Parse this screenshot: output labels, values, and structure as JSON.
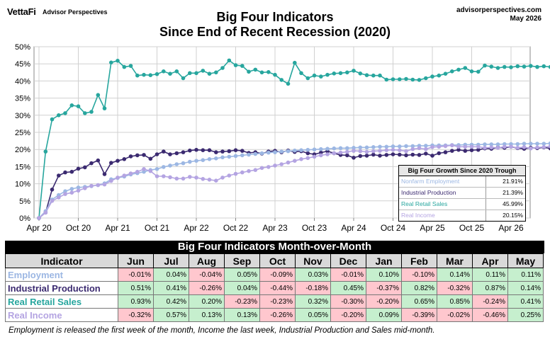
{
  "header": {
    "logo": "VettaFi",
    "logo_sub": "Advisor Perspectives",
    "title_line1": "Big Four Indicators",
    "title_line2": "Since  End of Recent Recession (2020)",
    "site": "advisorperspectives.com",
    "date": "May 2026"
  },
  "colors": {
    "employment": "#9cb7e3",
    "industrial": "#3b2a70",
    "sales": "#27a69e",
    "income": "#b4a4e2",
    "positive_cell": "#c6efce",
    "negative_cell": "#ffc7ce"
  },
  "chart_data": {
    "type": "line",
    "x_tick_labels": [
      "Apr 20",
      "Oct 20",
      "Apr 21",
      "Oct 21",
      "Apr 22",
      "Oct 22",
      "Apr 23",
      "Oct 23",
      "Apr 24",
      "Oct 24",
      "Apr 25",
      "Oct 25",
      "Apr 26"
    ],
    "y_tick_labels": [
      "0%",
      "5%",
      "10%",
      "15%",
      "20%",
      "25%",
      "30%",
      "35%",
      "40%",
      "45%",
      "50%"
    ],
    "ylim": [
      0,
      50
    ],
    "y_unit": "%",
    "x_start": "2020-04",
    "x_end": "2026-04",
    "grid": true,
    "series": [
      {
        "name": "Real Retail Sales",
        "color_key": "sales",
        "values": [
          0,
          19.4,
          28.8,
          30.0,
          30.6,
          32.9,
          32.6,
          30.6,
          31.0,
          35.9,
          32.0,
          45.4,
          45.9,
          44.1,
          44.4,
          41.6,
          41.8,
          41.7,
          42.0,
          42.8,
          42.1,
          42.8,
          40.8,
          42.3,
          42.3,
          43.0,
          42.1,
          42.5,
          43.8,
          46.0,
          44.6,
          44.4,
          42.7,
          43.3,
          42.5,
          42.6,
          41.8,
          40.3,
          39.2,
          45.3,
          42.3,
          40.8,
          41.6,
          41.3,
          41.8,
          42.2,
          42.3,
          42.5,
          43.0,
          42.2,
          41.7,
          41.6,
          41.6,
          40.4,
          40.5,
          40.5,
          40.6,
          40.4,
          40.3,
          40.8,
          41.3,
          41.6,
          42.1,
          42.8,
          43.3,
          43.8,
          42.8,
          42.7,
          44.5,
          44.2,
          43.8,
          44.1,
          44.0,
          44.3,
          44.2,
          44.4,
          44.1,
          44.3,
          44.1,
          43.8,
          44.1,
          44.5,
          45.9,
          45.5,
          45.9
        ]
      },
      {
        "name": "Industrial Production",
        "color_key": "industrial",
        "values": [
          0,
          1.6,
          8.3,
          12.4,
          13.3,
          13.5,
          14.4,
          14.8,
          16.0,
          16.8,
          12.8,
          16.1,
          16.7,
          17.2,
          18.0,
          18.3,
          18.4,
          17.3,
          18.6,
          19.4,
          18.6,
          18.9,
          19.2,
          19.7,
          19.9,
          19.8,
          19.8,
          19.2,
          19.4,
          19.5,
          19.8,
          19.6,
          19.0,
          19.2,
          18.8,
          19.4,
          19.6,
          19.2,
          19.7,
          19.3,
          19.5,
          18.9,
          18.6,
          19.1,
          19.5,
          18.9,
          18.4,
          18.3,
          17.6,
          18.1,
          18.2,
          18.5,
          18.2,
          18.4,
          18.6,
          18.5,
          18.3,
          18.5,
          18.4,
          18.8,
          18.2,
          18.9,
          19.2,
          19.6,
          19.9,
          19.6,
          19.8,
          19.9,
          20.3,
          20.2,
          20.6,
          20.5,
          20.8,
          20.4,
          20.2,
          20.5,
          20.4,
          20.6,
          20.3,
          20.7,
          20.6,
          20.5,
          21.2,
          20.5,
          21.4
        ]
      },
      {
        "name": "Nonfarm Employment",
        "color_key": "employment",
        "values": [
          0,
          2.0,
          5.4,
          6.7,
          7.8,
          8.5,
          8.9,
          9.1,
          9.3,
          9.6,
          10.1,
          11.3,
          11.7,
          12.1,
          12.7,
          13.1,
          13.5,
          14.0,
          14.3,
          14.9,
          15.3,
          15.7,
          16.0,
          16.4,
          16.7,
          16.9,
          17.2,
          17.4,
          17.7,
          17.9,
          18.1,
          18.3,
          18.5,
          18.7,
          18.9,
          19.1,
          19.2,
          19.4,
          19.5,
          19.7,
          19.8,
          19.9,
          20.0,
          20.1,
          20.2,
          20.3,
          20.4,
          20.4,
          20.5,
          20.6,
          20.6,
          20.7,
          20.8,
          20.8,
          20.9,
          20.9,
          21.0,
          21.0,
          21.1,
          21.1,
          21.2,
          21.2,
          21.2,
          21.3,
          21.3,
          21.4,
          21.4,
          21.4,
          21.5,
          21.5,
          21.5,
          21.6,
          21.6,
          21.6,
          21.7,
          21.7,
          21.7,
          21.7,
          21.8,
          21.8,
          21.8,
          21.8,
          21.9,
          21.9,
          21.9
        ]
      },
      {
        "name": "Real Income",
        "color_key": "income",
        "values": [
          0,
          1.6,
          5.0,
          6.0,
          7.0,
          7.4,
          8.0,
          8.7,
          9.4,
          9.6,
          9.8,
          10.8,
          11.8,
          12.4,
          13.0,
          13.5,
          14.3,
          13.7,
          12.2,
          12.2,
          11.9,
          11.5,
          11.5,
          12.0,
          11.8,
          11.4,
          11.2,
          10.9,
          11.8,
          12.4,
          12.9,
          13.3,
          13.7,
          14.0,
          14.6,
          14.9,
          15.3,
          15.7,
          16.2,
          16.7,
          17.2,
          17.5,
          17.9,
          18.3,
          18.6,
          18.9,
          19.1,
          19.3,
          19.6,
          19.5,
          19.3,
          19.5,
          19.6,
          19.8,
          19.9,
          19.8,
          19.5,
          20.1,
          20.4,
          20.1,
          20.7,
          20.8,
          21.0,
          21.2,
          20.8,
          20.8,
          20.8,
          20.8,
          20.5,
          20.6,
          20.5,
          20.8,
          20.8,
          20.5,
          20.7,
          20.3,
          20.6,
          20.7,
          20.9,
          20.0,
          20.2,
          20.1,
          20.1,
          19.9,
          20.2
        ]
      }
    ]
  },
  "growth_box": {
    "title": "Big Four Growth Since 2020 Trough",
    "rows": [
      {
        "label": "Nonfarm Employment",
        "value": "21.91%",
        "color_key": "employment"
      },
      {
        "label": "Industrial Production",
        "value": "21.39%",
        "color_key": "industrial"
      },
      {
        "label": "Real Retail Sales",
        "value": "45.99%",
        "color_key": "sales"
      },
      {
        "label": "Real Income",
        "value": "20.15%",
        "color_key": "income"
      }
    ]
  },
  "mom": {
    "title": "Big Four Indicators Month-over-Month",
    "header_label": "Indicator",
    "months": [
      "Jun",
      "Jul",
      "Aug",
      "Sep",
      "Oct",
      "Nov",
      "Dec",
      "Jan",
      "Feb",
      "Mar",
      "Apr",
      "May"
    ],
    "rows": [
      {
        "label": "Employment",
        "color_key": "employment",
        "values": [
          "-0.01%",
          "0.04%",
          "-0.04%",
          "0.05%",
          "-0.09%",
          "0.03%",
          "-0.01%",
          "0.10%",
          "-0.10%",
          "0.14%",
          "0.11%",
          "0.11%"
        ]
      },
      {
        "label": "Industrial Production",
        "color_key": "industrial",
        "values": [
          "0.51%",
          "0.41%",
          "-0.26%",
          "0.04%",
          "-0.44%",
          "-0.18%",
          "0.45%",
          "-0.37%",
          "0.82%",
          "-0.32%",
          "0.87%",
          "0.14%"
        ]
      },
      {
        "label": "Real Retail Sales",
        "color_key": "sales",
        "values": [
          "0.93%",
          "0.42%",
          "0.20%",
          "-0.23%",
          "-0.23%",
          "0.32%",
          "-0.30%",
          "-0.20%",
          "0.65%",
          "0.85%",
          "-0.24%",
          "0.41%"
        ]
      },
      {
        "label": "Real Income",
        "color_key": "income",
        "values": [
          "-0.32%",
          "0.57%",
          "0.13%",
          "0.13%",
          "-0.26%",
          "0.05%",
          "-0.20%",
          "0.09%",
          "-0.39%",
          "-0.02%",
          "-0.46%",
          "0.25%"
        ]
      }
    ]
  },
  "footnote": "Employment is released the first week of the month, Income the last week, Industrial Production and Sales mid-month."
}
